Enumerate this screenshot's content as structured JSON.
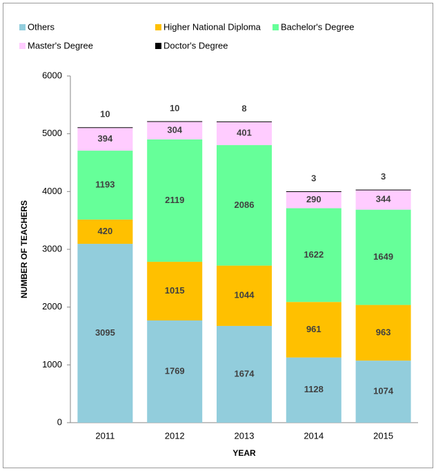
{
  "chart_data": {
    "type": "stacked_bar",
    "x_label": "YEAR",
    "y_label": "NUMBER OF TEACHERS",
    "categories": [
      "2011",
      "2012",
      "2013",
      "2014",
      "2015"
    ],
    "series": [
      {
        "name": "Others",
        "color": "#92cddc",
        "values": [
          3095,
          1769,
          1674,
          1128,
          1074
        ]
      },
      {
        "name": "Higher National Diploma",
        "color": "#ffc000",
        "values": [
          420,
          1015,
          1044,
          961,
          963
        ]
      },
      {
        "name": "Bachelor's Degree",
        "color": "#66ff99",
        "values": [
          1193,
          2119,
          2086,
          1622,
          1649
        ]
      },
      {
        "name": "Master's Degree",
        "color": "#ffccff",
        "values": [
          394,
          304,
          401,
          290,
          344
        ]
      },
      {
        "name": "Doctor's Degree",
        "color": "#000000",
        "values": [
          10,
          10,
          8,
          3,
          3
        ]
      }
    ],
    "ylim": [
      0,
      6000
    ],
    "yticks": [
      0,
      1000,
      2000,
      3000,
      4000,
      5000,
      6000
    ],
    "legend": "top"
  }
}
